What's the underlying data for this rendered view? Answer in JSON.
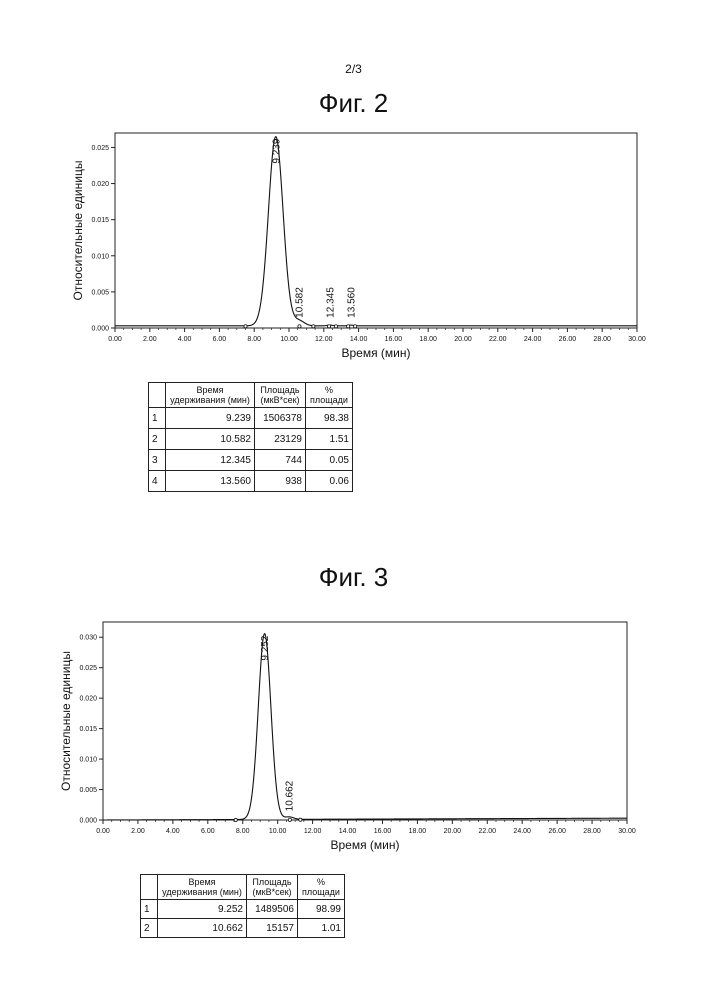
{
  "page_number": "2/3",
  "chart_data": [
    {
      "type": "line",
      "title": "Фиг. 2",
      "xlabel": "Время (мин)",
      "ylabel": "Относительные единицы",
      "xlim": [
        0,
        30
      ],
      "ylim": [
        0,
        0.027
      ],
      "x_ticks": [
        "0.00",
        "2.00",
        "4.00",
        "6.00",
        "8.00",
        "10.00",
        "12.00",
        "14.00",
        "16.00",
        "18.00",
        "20.00",
        "22.00",
        "24.00",
        "26.00",
        "28.00",
        "30.00"
      ],
      "y_ticks": [
        "0.000",
        "0.005",
        "0.010",
        "0.015",
        "0.020",
        "0.025"
      ],
      "peaks": [
        {
          "rt": 9.239,
          "label": "9.239",
          "height": 0.0262,
          "sigma": 0.42
        },
        {
          "rt": 10.582,
          "label": "10.582",
          "height": 0.0007,
          "sigma": 0.3
        },
        {
          "rt": 12.345,
          "label": "12.345",
          "height": 0.0001,
          "sigma": 0.15
        },
        {
          "rt": 13.56,
          "label": "13.560",
          "height": 0.0001,
          "sigma": 0.15
        }
      ],
      "baseline": [
        0.0003,
        0.0003
      ],
      "markers": [
        7.5,
        10.6,
        11.4,
        12.3,
        12.7,
        13.4,
        13.8
      ],
      "table": {
        "headers": [
          "Время удерживания (мин)",
          "Площадь (мкВ*сек)",
          "% площади"
        ],
        "rows": [
          [
            "1",
            "9.239",
            "1506378",
            "98.38"
          ],
          [
            "2",
            "10.582",
            "23129",
            "1.51"
          ],
          [
            "3",
            "12.345",
            "744",
            "0.05"
          ],
          [
            "4",
            "13.560",
            "938",
            "0.06"
          ]
        ]
      }
    },
    {
      "type": "line",
      "title": "Фиг. 3",
      "xlabel": "Время (мин)",
      "ylabel": "Относительные единицы",
      "xlim": [
        0,
        30
      ],
      "ylim": [
        0,
        0.0325
      ],
      "x_ticks": [
        "0.00",
        "2.00",
        "4.00",
        "6.00",
        "8.00",
        "10.00",
        "12.00",
        "14.00",
        "16.00",
        "18.00",
        "20.00",
        "22.00",
        "24.00",
        "26.00",
        "28.00",
        "30.00"
      ],
      "y_ticks": [
        "0.000",
        "0.005",
        "0.010",
        "0.015",
        "0.020",
        "0.025",
        "0.030"
      ],
      "peaks": [
        {
          "rt": 9.252,
          "label": "9.252",
          "height": 0.0305,
          "sigma": 0.36
        },
        {
          "rt": 10.662,
          "label": "10.662",
          "height": 0.0004,
          "sigma": 0.25
        }
      ],
      "baseline": [
        0.0,
        0.0003
      ],
      "markers": [
        7.6,
        10.7,
        11.3
      ],
      "table": {
        "headers": [
          "Время удерживания (мин)",
          "Площадь (мкВ*сек)",
          "% площади"
        ],
        "rows": [
          [
            "1",
            "9.252",
            "1489506",
            "98.99"
          ],
          [
            "2",
            "10.662",
            "15157",
            "1.01"
          ]
        ]
      }
    }
  ]
}
